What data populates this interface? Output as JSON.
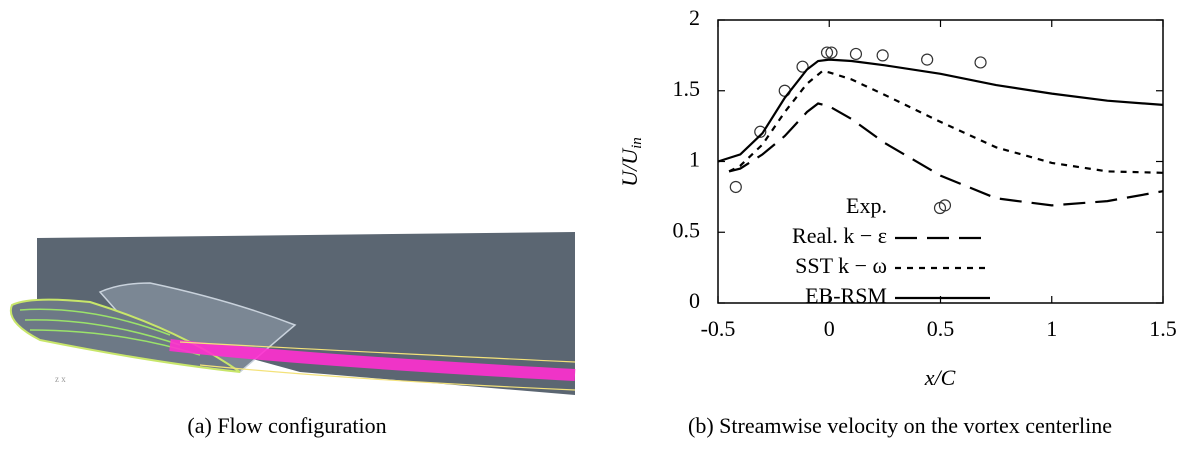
{
  "chart_data": {
    "type": "line",
    "xlabel": "x/C",
    "ylabel": "U/U",
    "ylabel_sub": "in",
    "xlim": [
      -0.5,
      1.5
    ],
    "xticks": [
      -0.5,
      0,
      0.5,
      1,
      1.5
    ],
    "ylim": [
      0,
      2
    ],
    "yticks": [
      0,
      0.5,
      1,
      1.5,
      2
    ],
    "legend": "lower left",
    "series": [
      {
        "name": "Exp.",
        "color": "#333333",
        "style": "circle",
        "x": [
          -0.42,
          -0.31,
          -0.2,
          -0.12,
          -0.01,
          0.01,
          0.12,
          0.24,
          0.44,
          0.52,
          0.68
        ],
        "values": [
          0.82,
          1.21,
          1.5,
          1.67,
          1.77,
          1.77,
          1.76,
          1.75,
          1.72,
          0.69,
          1.7
        ]
      },
      {
        "name": "Real. k − ε",
        "color": "#000000",
        "style": "long-dash",
        "x": [
          -0.45,
          -0.4,
          -0.3,
          -0.2,
          -0.1,
          -0.05,
          0,
          0.1,
          0.25,
          0.5,
          0.75,
          1,
          1.25,
          1.5
        ],
        "values": [
          0.93,
          0.95,
          1.05,
          1.18,
          1.35,
          1.41,
          1.39,
          1.3,
          1.13,
          0.9,
          0.74,
          0.69,
          0.72,
          0.79
        ]
      },
      {
        "name": "SST k − ω",
        "color": "#000000",
        "style": "short-dash",
        "x": [
          -0.45,
          -0.4,
          -0.3,
          -0.2,
          -0.1,
          -0.03,
          0,
          0.1,
          0.25,
          0.5,
          0.75,
          1,
          1.25,
          1.5
        ],
        "values": [
          0.93,
          0.97,
          1.12,
          1.35,
          1.55,
          1.64,
          1.63,
          1.58,
          1.47,
          1.28,
          1.1,
          0.99,
          0.93,
          0.92
        ]
      },
      {
        "name": "EB-RSM",
        "color": "#000000",
        "style": "solid",
        "x": [
          -0.5,
          -0.4,
          -0.3,
          -0.2,
          -0.1,
          -0.05,
          0,
          0.1,
          0.25,
          0.5,
          0.75,
          1,
          1.25,
          1.5
        ],
        "values": [
          1.0,
          1.05,
          1.2,
          1.45,
          1.65,
          1.71,
          1.72,
          1.71,
          1.68,
          1.62,
          1.54,
          1.48,
          1.43,
          1.4
        ]
      }
    ]
  },
  "captions": [
    "(a) Flow configuration",
    "(b) Streamwise velocity on the vortex centerline"
  ]
}
